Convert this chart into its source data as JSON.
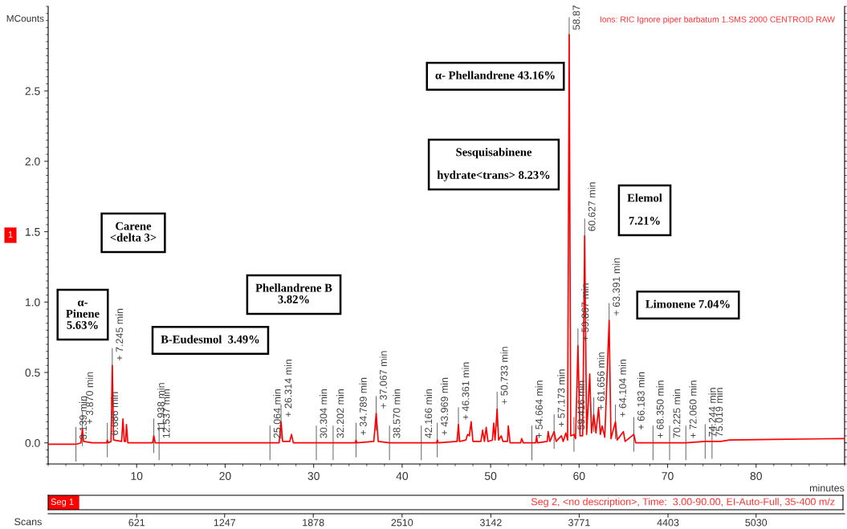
{
  "chart_data": {
    "type": "line",
    "title": "Ions: RIC Ignore piper barbatum 1.SMS 2000 CENTROID RAW",
    "xlabel": "minutes",
    "ylabel": "MCounts",
    "x2label": "Scans",
    "xlim": [
      0,
      90
    ],
    "xticks": [
      10,
      20,
      30,
      40,
      50,
      60,
      70,
      80
    ],
    "ylim": [
      -0.15,
      3.1
    ],
    "yticks": [
      {
        "value": 0,
        "label": "0.0"
      },
      0.5,
      {
        "value": 1,
        "label": "1.0"
      },
      1.5,
      {
        "value": 2,
        "label": "2.0"
      },
      2.5
    ],
    "x2lim": [
      -9,
      5660
    ],
    "x2ticks": [
      621,
      1247,
      1878,
      2510,
      3142,
      3771,
      4403,
      5030
    ],
    "grid": false,
    "legend": false,
    "marker": "none",
    "line_style": "solid",
    "series": [
      {
        "color": "#ff0000",
        "x": [
          0,
          3.0,
          3.139,
          3.7,
          3.87,
          4.0,
          5,
          6.6,
          6.686,
          6.8,
          7.1,
          7.245,
          7.4,
          8.3,
          8.45,
          8.6,
          8.75,
          8.85,
          9.0,
          11.8,
          11.938,
          12.1,
          12.537,
          25.064,
          26.1,
          26.314,
          26.5,
          27.3,
          27.5,
          27.7,
          30.304,
          32.202,
          34.7,
          34.789,
          34.9,
          36.8,
          37.067,
          37.3,
          38.57,
          42.166,
          43.9,
          43.969,
          44.1,
          46.2,
          46.361,
          46.5,
          47.2,
          47.4,
          47.6,
          47.8,
          48.0,
          48.9,
          49.1,
          49.3,
          49.5,
          49.7,
          50.2,
          50.35,
          50.5,
          50.733,
          50.9,
          51.2,
          51.4,
          51.9,
          52.0,
          52.2,
          53.4,
          53.5,
          53.7,
          54.664,
          55.1,
          55.2,
          55.3,
          56.4,
          56.5,
          56.7,
          57.173,
          57.4,
          58.0,
          58.2,
          58.5,
          58.7,
          58.878,
          59.05,
          59.416,
          59.6,
          59.867,
          60.1,
          60.4,
          60.627,
          60.85,
          61.2,
          61.4,
          61.656,
          61.9,
          62.2,
          62.4,
          62.6,
          62.9,
          63.391,
          63.6,
          64.104,
          64.3,
          65.0,
          65.2,
          66.183,
          66.4,
          68.35,
          70,
          70.225,
          72.06,
          74.244,
          75.019,
          76,
          77,
          82,
          90
        ],
        "values": [
          -0.01,
          -0.01,
          -0.01,
          0.0,
          0.1,
          0.01,
          0.0,
          0.0,
          0.02,
          0.0,
          0.01,
          0.55,
          0.02,
          0.01,
          0.17,
          0.01,
          0.01,
          0.13,
          0.0,
          0.0,
          0.05,
          0.0,
          0.0,
          0.0,
          0.0,
          0.15,
          0.01,
          0.01,
          0.06,
          0.0,
          0.0,
          0.0,
          0.0,
          0.02,
          0.0,
          0.01,
          0.21,
          0.01,
          0.0,
          0.0,
          0.0,
          0.02,
          0.0,
          0.01,
          0.13,
          0.01,
          0.02,
          0.06,
          0.05,
          0.15,
          0.01,
          0.01,
          0.09,
          0.01,
          0.11,
          0.01,
          0.02,
          0.14,
          0.02,
          0.24,
          0.02,
          0.05,
          0.01,
          0.01,
          0.12,
          0.0,
          0.0,
          0.03,
          0.0,
          0.0,
          0.0,
          0.05,
          0.0,
          0.01,
          0.08,
          0.01,
          0.08,
          0.01,
          0.05,
          0.01,
          0.07,
          0.02,
          2.9,
          0.05,
          0.06,
          0.03,
          0.69,
          0.05,
          0.05,
          1.47,
          0.06,
          0.49,
          0.07,
          0.2,
          0.07,
          0.25,
          0.06,
          0.12,
          0.04,
          0.87,
          0.03,
          0.15,
          0.02,
          0.08,
          0.01,
          0.06,
          0.0,
          0.0,
          0.0,
          0.0,
          0.0,
          0.01,
          0.01,
          0.01,
          0.02,
          0.025,
          0.03
        ]
      }
    ],
    "annotations": [
      "α- Phellandrene 43.16%",
      "Sesquisabinene\n\nhydrate<trans> 8.23%",
      "Elemol\n\n7.21%",
      "Carene\n<delta 3>",
      "Phellandrene B\n3.82%",
      "α-\nPinene\n5.63%",
      "B-Eudesmol  3.49%",
      "Limonene 7.04%",
      "1",
      "Seg 1",
      "Seg 2, <no description>, Time:  3.00-90.00, EI-Auto-Full, 35-400 m/z",
      {
        "text": "3.139 min",
        "x": 3.139,
        "y": -0.01
      },
      {
        "text": "+ 3.870 min",
        "x": 3.87,
        "y": 0.1
      },
      {
        "text": "6.686 min",
        "x": 6.686,
        "y": 0.02
      },
      {
        "text": "+ 7.245 min",
        "x": 7.245,
        "y": 0.55
      },
      {
        "text": "11.938 min",
        "x": 11.938,
        "y": 0.05
      },
      {
        "text": "12.537 min",
        "x": 12.537,
        "y": 0.0
      },
      {
        "text": "25.064 min",
        "x": 25.064,
        "y": 0.0
      },
      {
        "text": "+ 26.314 min",
        "x": 26.314,
        "y": 0.15
      },
      {
        "text": "30.304 min",
        "x": 30.304,
        "y": 0.0
      },
      {
        "text": "32.202 min",
        "x": 32.202,
        "y": 0.0
      },
      {
        "text": "+ 34.789 min",
        "x": 34.789,
        "y": 0.02
      },
      {
        "text": "+ 37.067 min",
        "x": 37.067,
        "y": 0.21
      },
      {
        "text": "38.570 min",
        "x": 38.57,
        "y": 0.0
      },
      {
        "text": "42.166 min",
        "x": 42.166,
        "y": 0.0
      },
      {
        "text": "+ 43.969 min",
        "x": 43.969,
        "y": 0.02
      },
      {
        "text": "+ 46.361 min",
        "x": 46.361,
        "y": 0.13
      },
      {
        "text": "+ 50.733 min",
        "x": 50.733,
        "y": 0.24
      },
      {
        "text": "+ 54.664 min",
        "x": 54.664,
        "y": 0.0
      },
      {
        "text": "+ 57.173 min",
        "x": 57.173,
        "y": 0.08
      },
      {
        "text": "58.87",
        "x": 58.878,
        "y": 2.9
      },
      {
        "text": "59.416 min",
        "x": 59.416,
        "y": 0.06
      },
      {
        "text": "+ 59.867 min",
        "x": 59.867,
        "y": 0.69
      },
      {
        "text": "60.627 min",
        "x": 60.627,
        "y": 1.47
      },
      {
        "text": "+ 61.656 min",
        "x": 61.656,
        "y": 0.2
      },
      {
        "text": "+ 63.391 min",
        "x": 63.391,
        "y": 0.87
      },
      {
        "text": "+ 64.104 min",
        "x": 64.104,
        "y": 0.15
      },
      {
        "text": "+ 66.183 min",
        "x": 66.183,
        "y": 0.06
      },
      {
        "text": "+ 68.350 min",
        "x": 68.35,
        "y": 0.0
      },
      {
        "text": "70.225 min",
        "x": 70.225,
        "y": 0.0
      },
      {
        "text": "+ 72.060 min",
        "x": 72.06,
        "y": 0.0
      },
      {
        "text": "74.244 min",
        "x": 74.244,
        "y": 0.01
      },
      {
        "text": "75.019 min",
        "x": 75.019,
        "y": 0.01
      }
    ]
  }
}
